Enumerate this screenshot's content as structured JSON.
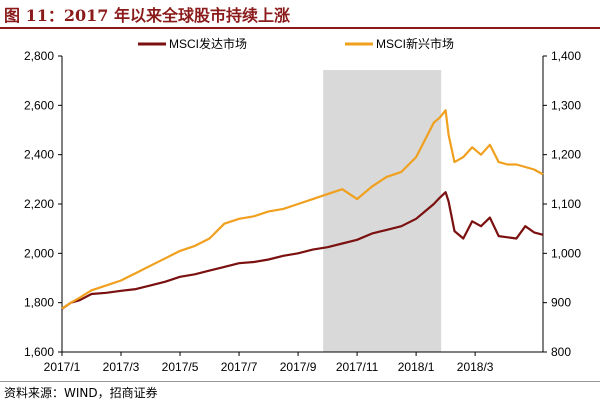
{
  "figure_title": "图 11：2017 年以来全球股市持续上涨",
  "source": "资料来源：WIND，招商证券",
  "chart_data": {
    "type": "line",
    "title": "",
    "legend_position": "top",
    "grid": false,
    "x_ticks": [
      "2017/1",
      "2017/3",
      "2017/5",
      "2017/7",
      "2017/9",
      "2017/11",
      "2018/1",
      "2018/3"
    ],
    "y_left": {
      "range": [
        1600,
        2800
      ],
      "ticks": [
        1600,
        1800,
        2000,
        2200,
        2400,
        2600,
        2800
      ],
      "tick_labels": [
        "1,600",
        "1,800",
        "2,000",
        "2,200",
        "2,400",
        "2,600",
        "2,800"
      ]
    },
    "y_right": {
      "range": [
        800,
        1400
      ],
      "ticks": [
        800,
        900,
        1000,
        1100,
        1200,
        1300,
        1400
      ],
      "tick_labels": [
        "800",
        "900",
        "1,000",
        "1,100",
        "1,200",
        "1,300",
        "1,400"
      ]
    },
    "shaded_region": {
      "x_start": 8.85,
      "x_end": 12.85,
      "color": "#d9d9d9"
    },
    "series": [
      {
        "name": "MSCI发达市场",
        "axis": "left",
        "color": "#7b1010",
        "x": [
          0,
          0.3,
          0.6,
          1.0,
          1.5,
          2.0,
          2.5,
          3.0,
          3.5,
          4.0,
          4.5,
          5.0,
          5.5,
          6.0,
          6.5,
          7.0,
          7.5,
          8.0,
          8.5,
          9.0,
          9.5,
          10.0,
          10.5,
          11.0,
          11.5,
          12.0,
          12.3,
          12.6,
          12.8,
          13.0,
          13.1,
          13.3,
          13.6,
          13.9,
          14.2,
          14.5,
          14.8,
          15.1,
          15.4,
          15.7,
          16.0,
          16.3
        ],
        "values": [
          1775,
          1800,
          1810,
          1835,
          1840,
          1848,
          1855,
          1870,
          1885,
          1905,
          1915,
          1930,
          1945,
          1960,
          1965,
          1975,
          1990,
          2000,
          2015,
          2025,
          2040,
          2055,
          2080,
          2095,
          2110,
          2140,
          2170,
          2200,
          2225,
          2248,
          2210,
          2090,
          2060,
          2130,
          2110,
          2145,
          2070,
          2065,
          2060,
          2110,
          2085,
          2075
        ]
      },
      {
        "name": "MSCI新兴市场",
        "axis": "right",
        "color": "#f0a01e",
        "x": [
          0,
          0.3,
          0.6,
          1.0,
          1.5,
          2.0,
          2.5,
          3.0,
          3.5,
          4.0,
          4.5,
          5.0,
          5.5,
          6.0,
          6.5,
          7.0,
          7.5,
          8.0,
          8.5,
          9.0,
          9.5,
          10.0,
          10.5,
          11.0,
          11.5,
          12.0,
          12.3,
          12.6,
          12.8,
          13.0,
          13.1,
          13.3,
          13.6,
          13.9,
          14.2,
          14.5,
          14.8,
          15.1,
          15.4,
          15.7,
          16.0,
          16.3
        ],
        "values": [
          888,
          900,
          910,
          925,
          935,
          945,
          960,
          975,
          990,
          1005,
          1015,
          1030,
          1060,
          1070,
          1075,
          1085,
          1090,
          1100,
          1110,
          1120,
          1130,
          1110,
          1135,
          1155,
          1165,
          1195,
          1230,
          1265,
          1275,
          1290,
          1240,
          1185,
          1195,
          1215,
          1200,
          1220,
          1185,
          1180,
          1180,
          1175,
          1170,
          1160
        ]
      }
    ]
  }
}
